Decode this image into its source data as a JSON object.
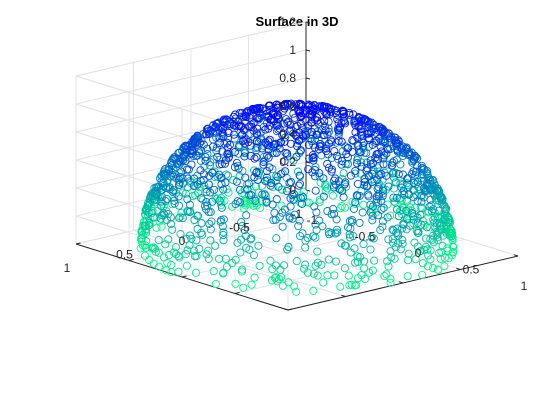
{
  "chart_data": {
    "type": "scatter3d",
    "title": "Surface in 3D",
    "xlim": [
      -1,
      1
    ],
    "ylim": [
      -1,
      1
    ],
    "zlim": [
      0,
      1.2
    ],
    "x_ticks": [
      -1,
      -0.5,
      0,
      0.5,
      1
    ],
    "y_ticks": [
      -1,
      -0.5,
      0,
      0.5,
      1
    ],
    "z_ticks": [
      0,
      0.2,
      0.4,
      0.6,
      0.8,
      1,
      1.2
    ],
    "x_tick_labels": [
      "-1",
      "-0.5",
      "0",
      "0.5",
      "1"
    ],
    "y_tick_labels": [
      "-1",
      "-0.5",
      "0",
      "0.5",
      "1"
    ],
    "z_tick_labels": [
      "0",
      "0.2",
      "0.4",
      "0.6",
      "0.8",
      "1",
      "1.2"
    ],
    "grid": true,
    "marker": "circle",
    "colormap": "winter",
    "color_low": "#00ff80",
    "color_high": "#0000ff",
    "surface": "upper unit hemisphere z = sqrt(1 - x^2 - y^2)",
    "n_points": 1600
  }
}
